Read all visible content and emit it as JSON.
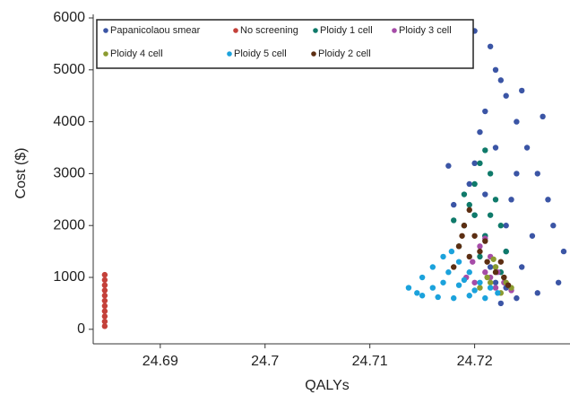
{
  "chart_data": {
    "type": "scatter",
    "x_label": "QALYs",
    "y_label": "Cost ($)",
    "xlim": [
      24.6836,
      24.7291
    ],
    "ylim": [
      -280,
      6000
    ],
    "xticks": [
      24.69,
      24.7,
      24.71,
      24.72
    ],
    "yticks": [
      0,
      1000,
      2000,
      3000,
      4000,
      5000,
      6000
    ],
    "legend": "upper left",
    "series": [
      {
        "name": "Papanicolaou smear",
        "color": "#3b55a5",
        "x": [
          24.7225,
          24.724,
          24.726,
          24.728,
          24.7285,
          24.7275,
          24.727,
          24.726,
          24.725,
          24.724,
          24.723,
          24.722,
          24.7215,
          24.72,
          24.7225,
          24.721,
          24.7205,
          24.72,
          24.7195,
          24.72,
          24.721,
          24.7215,
          24.722,
          24.723,
          24.7235,
          24.724,
          24.722,
          24.723,
          24.7245,
          24.7255,
          24.7175,
          24.718,
          24.7265,
          24.7245,
          24.721,
          24.723
        ],
        "y": [
          500,
          600,
          700,
          900,
          1500,
          2000,
          2500,
          3000,
          3500,
          4000,
          4500,
          5000,
          5450,
          5750,
          4800,
          4200,
          3800,
          3200,
          2800,
          2200,
          1800,
          1200,
          900,
          1500,
          2500,
          3000,
          3500,
          2000,
          1200,
          1800,
          3150,
          2400,
          4100,
          4600,
          2600,
          800
        ]
      },
      {
        "name": "No screening",
        "color": "#c4413a",
        "x": [
          24.6847,
          24.6847,
          24.6847,
          24.6847,
          24.6847,
          24.6847,
          24.6847,
          24.6847,
          24.6847,
          24.6847,
          24.6847
        ],
        "y": [
          60,
          150,
          250,
          350,
          450,
          550,
          650,
          750,
          850,
          950,
          1050
        ]
      },
      {
        "name": "Ploidy 1 cell",
        "color": "#0f7a6a",
        "x": [
          24.7185,
          24.719,
          24.7195,
          24.72,
          24.7205,
          24.721,
          24.7215,
          24.722,
          24.7225,
          24.723,
          24.722,
          24.721,
          24.72,
          24.7215,
          24.7205,
          24.7225,
          24.719,
          24.718
        ],
        "y": [
          1600,
          2000,
          2400,
          2800,
          3200,
          3450,
          3000,
          2500,
          2000,
          1500,
          1200,
          1800,
          2200,
          2200,
          1400,
          1100,
          2600,
          2100
        ]
      },
      {
        "name": "Ploidy 3 cell",
        "color": "#a64ca8",
        "x": [
          24.7192,
          24.7198,
          24.7205,
          24.721,
          24.7215,
          24.7222,
          24.7228,
          24.7235,
          24.722,
          24.721,
          24.72,
          24.7215
        ],
        "y": [
          1000,
          1300,
          1600,
          1750,
          1400,
          1100,
          900,
          750,
          800,
          1100,
          900,
          1000
        ]
      },
      {
        "name": "Ploidy 4 cell",
        "color": "#8b9b30",
        "x": [
          24.7205,
          24.7212,
          24.722,
          24.7228,
          24.7235,
          24.7225,
          24.7215,
          24.7218,
          24.723
        ],
        "y": [
          800,
          1000,
          1200,
          1000,
          800,
          700,
          900,
          1350,
          900
        ]
      },
      {
        "name": "Ploidy 5 cell",
        "color": "#1ba2dc",
        "x": [
          24.7137,
          24.7145,
          24.715,
          24.716,
          24.717,
          24.7178,
          24.7185,
          24.7195,
          24.7205,
          24.7215,
          24.7222,
          24.721,
          24.7195,
          24.718,
          24.7165,
          24.715,
          24.717,
          24.7185,
          24.72,
          24.716,
          24.7175,
          24.719
        ],
        "y": [
          800,
          700,
          1000,
          1200,
          1400,
          1500,
          1300,
          1100,
          900,
          800,
          700,
          600,
          650,
          600,
          620,
          650,
          900,
          850,
          750,
          800,
          1100,
          950
        ]
      },
      {
        "name": "Ploidy 2 cell",
        "color": "#5c2e12",
        "x": [
          24.718,
          24.7185,
          24.719,
          24.7195,
          24.72,
          24.7205,
          24.7212,
          24.722,
          24.7228,
          24.7232,
          24.7195,
          24.721,
          24.7225,
          24.7188
        ],
        "y": [
          1200,
          1600,
          2000,
          2300,
          1800,
          1500,
          1300,
          1100,
          1000,
          850,
          1400,
          1700,
          1300,
          1800
        ]
      }
    ]
  }
}
